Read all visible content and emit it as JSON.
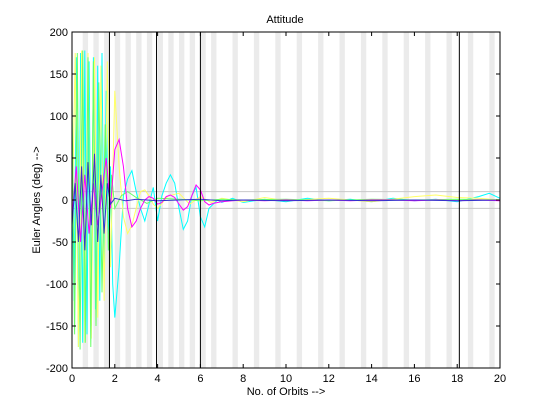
{
  "chart_data": {
    "type": "line",
    "title": "Attitude",
    "xlabel": "No. of Orbits -->",
    "ylabel": "Euler Angles (deg) -->",
    "xlim": [
      0,
      20
    ],
    "ylim": [
      -200,
      200
    ],
    "xticks": [
      0,
      2,
      4,
      6,
      8,
      10,
      12,
      14,
      16,
      18,
      20
    ],
    "yticks": [
      200,
      150,
      100,
      50,
      0,
      -50,
      -100,
      -150,
      -200
    ],
    "grid": false,
    "legend": "none",
    "shaded_bands": [
      [
        0.5,
        0.75
      ],
      [
        1.0,
        1.25
      ],
      [
        1.5,
        1.75
      ],
      [
        2.0,
        2.25
      ],
      [
        2.5,
        2.75
      ],
      [
        3.0,
        3.25
      ],
      [
        3.5,
        3.75
      ],
      [
        4.0,
        4.25
      ],
      [
        4.5,
        4.75
      ],
      [
        5.0,
        5.25
      ],
      [
        5.5,
        5.75
      ],
      [
        6.0,
        6.25
      ],
      [
        6.5,
        6.75
      ],
      [
        7.5,
        7.75
      ],
      [
        8.5,
        8.75
      ],
      [
        9.5,
        9.75
      ],
      [
        10.5,
        10.75
      ],
      [
        11.5,
        11.75
      ],
      [
        12.5,
        12.75
      ],
      [
        13.5,
        13.75
      ],
      [
        14.5,
        14.75
      ],
      [
        15.5,
        15.75
      ],
      [
        16.5,
        16.75
      ],
      [
        17.5,
        17.75
      ],
      [
        18.5,
        18.75
      ],
      [
        19.5,
        19.75
      ]
    ],
    "vertical_markers": [
      1.75,
      3.95,
      6.0,
      18.1
    ],
    "reference_lines": [
      10,
      -10
    ],
    "colors": {
      "band": "#ebebeb",
      "marker": "#000000",
      "reference": "#c8c8c8"
    },
    "series": [
      {
        "color": "#00ffff",
        "x": [
          0,
          0.1,
          0.2,
          0.3,
          0.4,
          0.5,
          0.6,
          0.7,
          0.8,
          0.9,
          1.0,
          1.1,
          1.2,
          1.3,
          1.4,
          1.5,
          1.6,
          1.7,
          1.8,
          1.9,
          2.0,
          2.2,
          2.4,
          2.6,
          2.8,
          3.0,
          3.2,
          3.4,
          3.6,
          3.8,
          4.0,
          4.2,
          4.4,
          4.6,
          4.8,
          5.0,
          5.2,
          5.4,
          5.6,
          5.8,
          6.0,
          6.2,
          6.4,
          6.6,
          6.8,
          7.0,
          7.5,
          8.0,
          9.0,
          10.0,
          11.0,
          12.0,
          13.0,
          14.0,
          15.0,
          16.0,
          17.0,
          18.0,
          19.0,
          19.5,
          20.0
        ],
        "y": [
          30,
          -120,
          170,
          -175,
          175,
          -170,
          178,
          -160,
          165,
          -150,
          170,
          -130,
          160,
          -120,
          175,
          -90,
          130,
          -60,
          40,
          -100,
          -140,
          -80,
          5,
          25,
          35,
          10,
          -10,
          -25,
          -5,
          15,
          -25,
          5,
          20,
          30,
          20,
          -10,
          -35,
          -25,
          5,
          15,
          -20,
          -32,
          -10,
          -5,
          0,
          -3,
          2,
          -3,
          1,
          -2,
          2,
          -1,
          1,
          -2,
          2,
          -1,
          1,
          -2,
          4,
          8,
          2
        ]
      },
      {
        "color": "#ffff66",
        "x": [
          0,
          0.15,
          0.3,
          0.45,
          0.6,
          0.75,
          0.9,
          1.05,
          1.2,
          1.35,
          1.5,
          1.65,
          1.8,
          2.0,
          2.2,
          2.4,
          2.6,
          2.8,
          3.0,
          3.2,
          3.4,
          3.6,
          3.8,
          4.0,
          4.5,
          5.0,
          5.5,
          6.0,
          6.5,
          7.0,
          8.0,
          9.0,
          10.0,
          12.0,
          14.0,
          16.0,
          17.0,
          18.0,
          19.0,
          20.0
        ],
        "y": [
          -40,
          175,
          -175,
          178,
          -170,
          175,
          -165,
          170,
          -140,
          160,
          -120,
          165,
          -80,
          130,
          40,
          -20,
          -40,
          -30,
          -10,
          10,
          12,
          5,
          -5,
          -10,
          5,
          8,
          -5,
          4,
          -3,
          2,
          -2,
          3,
          -1,
          2,
          -2,
          4,
          6,
          3,
          2,
          0
        ]
      },
      {
        "color": "#66ff66",
        "x": [
          0,
          0.12,
          0.25,
          0.38,
          0.5,
          0.62,
          0.75,
          0.88,
          1.0,
          1.12,
          1.25,
          1.4,
          1.55,
          1.7,
          1.85,
          2.0,
          2.3,
          2.6,
          3.0,
          3.5,
          4.0,
          5.0,
          6.0,
          7.0,
          8.0,
          10.0,
          12.0,
          14.0,
          16.0,
          18.0,
          20.0
        ],
        "y": [
          120,
          -160,
          175,
          -178,
          178,
          -170,
          170,
          -175,
          165,
          -150,
          140,
          -110,
          90,
          -60,
          30,
          -10,
          5,
          10,
          3,
          -4,
          2,
          1,
          -1,
          1,
          0,
          1,
          -1,
          1,
          0,
          1,
          0
        ]
      },
      {
        "color": "#ff00ff",
        "x": [
          0,
          0.2,
          0.4,
          0.6,
          0.8,
          1.0,
          1.2,
          1.4,
          1.6,
          1.8,
          2.0,
          2.2,
          2.4,
          2.6,
          2.8,
          3.0,
          3.2,
          3.4,
          3.6,
          3.8,
          4.0,
          4.2,
          4.4,
          4.6,
          4.8,
          5.0,
          5.2,
          5.4,
          5.6,
          5.8,
          6.0,
          6.2,
          6.4,
          6.6,
          6.8,
          7.0,
          7.5,
          8.0,
          9.0,
          10.0,
          11.0,
          12.0,
          13.0,
          14.0,
          15.0,
          16.0,
          17.0,
          18.0,
          19.0,
          20.0
        ],
        "y": [
          -20,
          40,
          -50,
          30,
          -40,
          20,
          -30,
          10,
          50,
          -10,
          60,
          72,
          40,
          -10,
          -32,
          -25,
          -10,
          0,
          4,
          2,
          -5,
          -3,
          4,
          6,
          3,
          -5,
          -12,
          -8,
          5,
          18,
          12,
          -2,
          -6,
          -4,
          -3,
          -2,
          -1,
          0,
          -1,
          0,
          -1,
          0,
          -1,
          0,
          0,
          -1,
          0,
          -1,
          0,
          -1
        ]
      },
      {
        "color": "#3333cc",
        "x": [
          0,
          0.15,
          0.3,
          0.45,
          0.6,
          0.75,
          0.9,
          1.05,
          1.2,
          1.35,
          1.5,
          1.65,
          1.8,
          2.0,
          2.5,
          3.0,
          3.5,
          4.0,
          5.0,
          6.0,
          7.0,
          8.0,
          10.0,
          12.0,
          14.0,
          16.0,
          18.0,
          20.0
        ],
        "y": [
          -30,
          20,
          -50,
          40,
          -60,
          45,
          -30,
          55,
          -50,
          30,
          -40,
          20,
          -5,
          2,
          -1,
          1,
          0,
          -1,
          0,
          1,
          -1,
          0,
          -1,
          0,
          -1,
          0,
          -1,
          0
        ]
      }
    ]
  }
}
